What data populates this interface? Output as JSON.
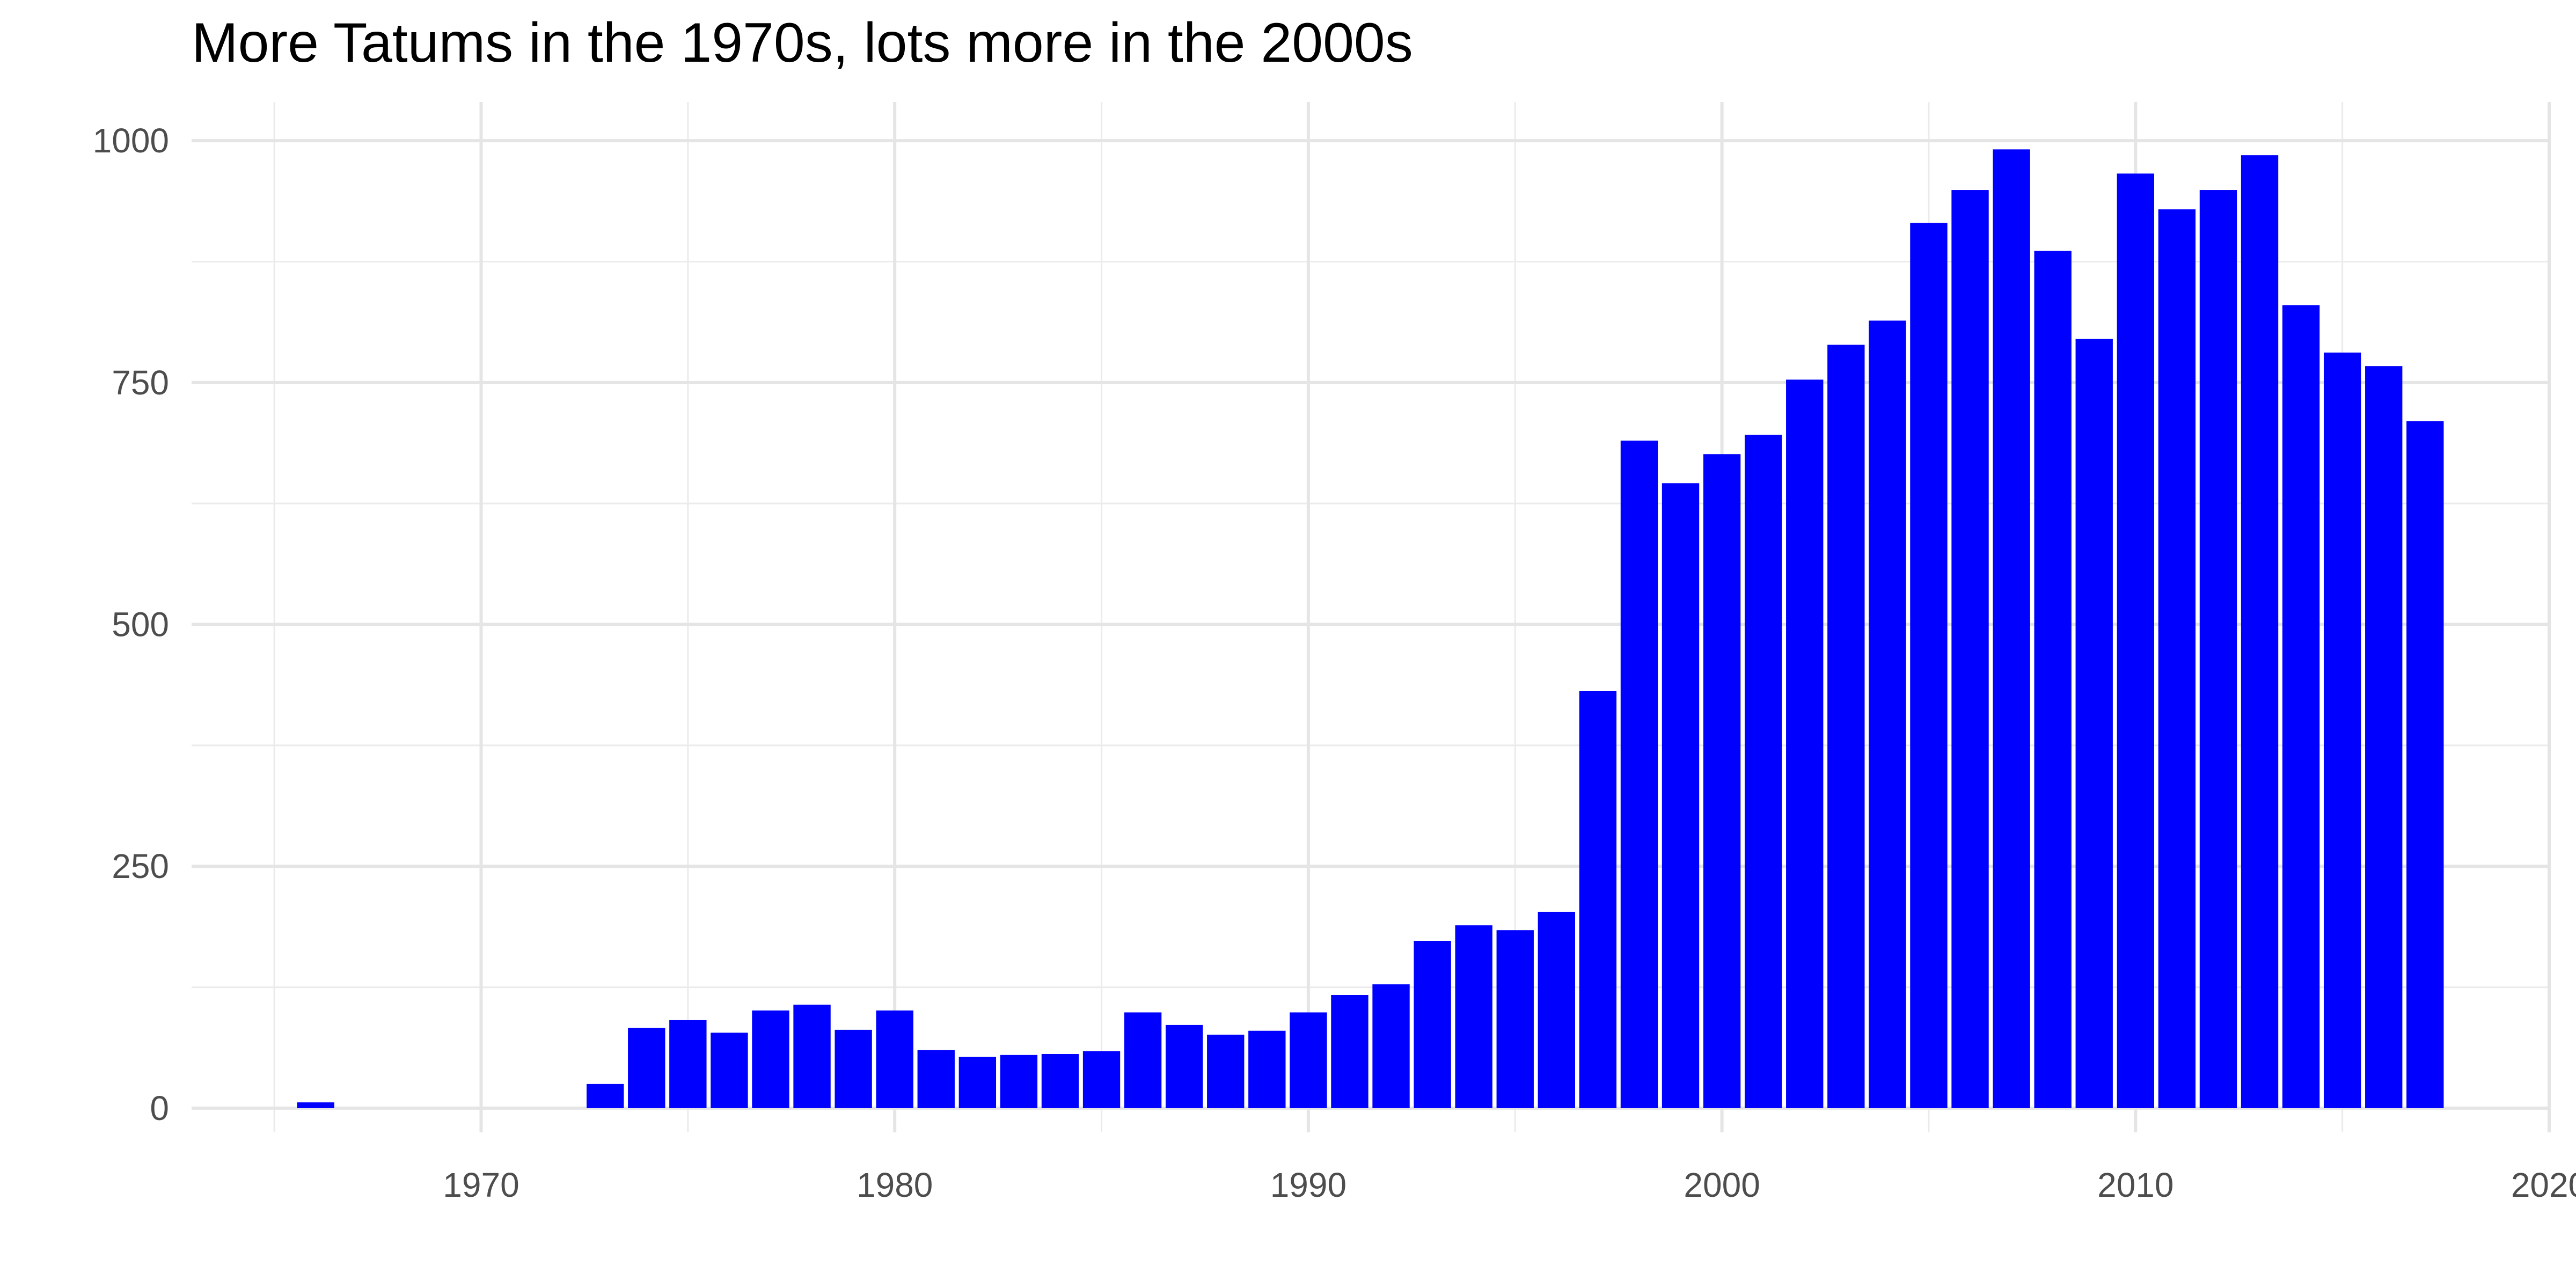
{
  "chart_data": {
    "type": "bar",
    "title": "More Tatums in the 1970s, lots more in the 2000s",
    "xlabel": "",
    "ylabel": "",
    "x": [
      1966,
      1973,
      1974,
      1975,
      1976,
      1977,
      1978,
      1979,
      1980,
      1981,
      1982,
      1983,
      1984,
      1985,
      1986,
      1987,
      1988,
      1989,
      1990,
      1991,
      1992,
      1993,
      1994,
      1995,
      1996,
      1997,
      1998,
      1999,
      2000,
      2001,
      2002,
      2003,
      2004,
      2005,
      2006,
      2007,
      2008,
      2009,
      2010,
      2011,
      2012,
      2013,
      2014,
      2015,
      2016,
      2017
    ],
    "values": [
      6,
      25,
      83,
      91,
      78,
      101,
      107,
      81,
      101,
      60,
      53,
      55,
      56,
      59,
      99,
      86,
      76,
      80,
      99,
      117,
      128,
      173,
      189,
      184,
      203,
      431,
      690,
      646,
      676,
      696,
      753,
      789,
      814,
      915,
      949,
      991,
      886,
      795,
      966,
      929,
      949,
      985,
      830,
      781,
      767,
      710
    ],
    "xlim": [
      1963,
      2020
    ],
    "ylim": [
      -25,
      1040
    ],
    "x_ticks": [
      1970,
      1980,
      1990,
      2000,
      2010,
      2020
    ],
    "y_ticks": [
      0,
      250,
      500,
      750,
      1000
    ],
    "bar_color": "#0000ff",
    "grid": true,
    "legend": "none"
  }
}
